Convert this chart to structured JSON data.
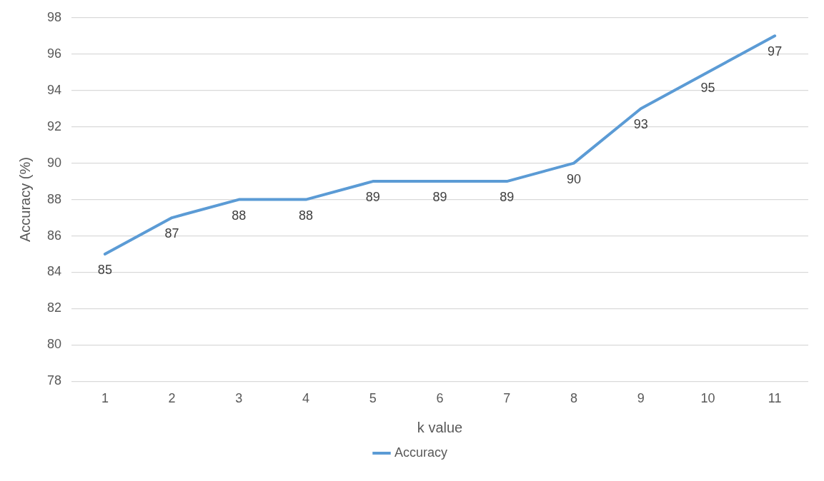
{
  "chart_data": {
    "type": "line",
    "xlabel": "k value",
    "ylabel": "Accuracy (%)",
    "categories": [
      "1",
      "2",
      "3",
      "4",
      "5",
      "6",
      "7",
      "8",
      "9",
      "10",
      "11"
    ],
    "series": [
      {
        "name": "Accuracy",
        "color": "#5b9bd5",
        "values": [
          85,
          87,
          88,
          88,
          89,
          89,
          89,
          90,
          93,
          95,
          97
        ]
      }
    ],
    "ylim": [
      78,
      98
    ],
    "yticks": [
      78,
      80,
      82,
      84,
      86,
      88,
      90,
      92,
      94,
      96,
      98
    ],
    "grid": "y",
    "legend": "bottom",
    "marker": "none",
    "line_style": "solid",
    "data_labels": true
  }
}
